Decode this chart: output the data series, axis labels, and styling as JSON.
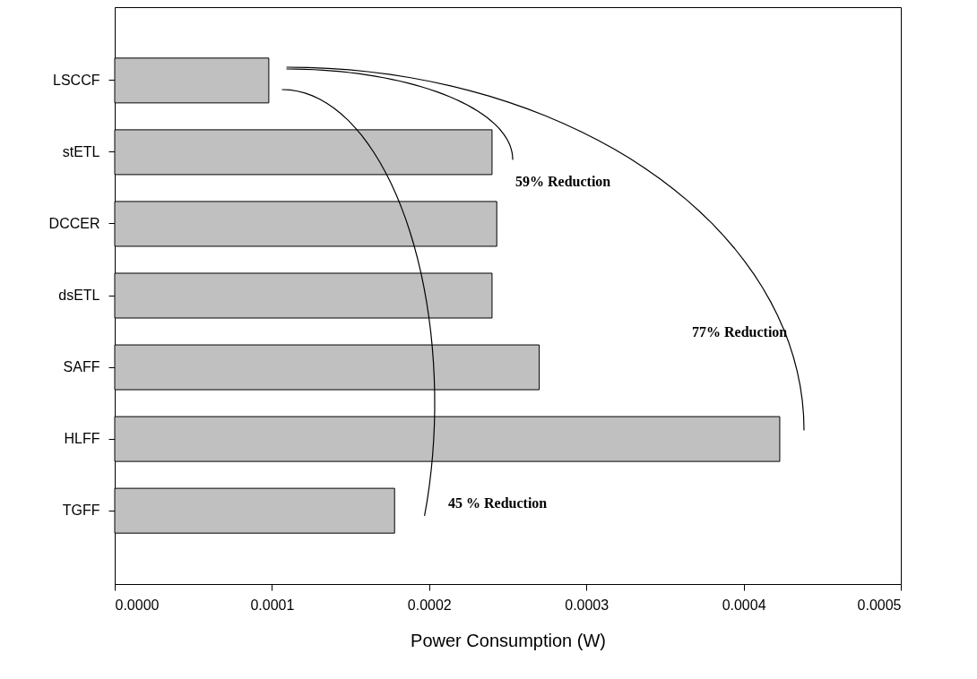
{
  "chart_data": {
    "type": "bar",
    "orientation": "horizontal",
    "xlabel": "Power Consumption (W)",
    "categories": [
      "LSCCF",
      "stETL",
      "DCCER",
      "dsETL",
      "SAFF",
      "HLFF",
      "TGFF"
    ],
    "values": [
      9.8e-05,
      0.00024,
      0.000243,
      0.00024,
      0.00027,
      0.000423,
      0.000178
    ],
    "color": "#c0c0c0",
    "xlim": [
      0,
      0.0005
    ],
    "xticks": [
      {
        "value": 0,
        "label": "0.0000"
      },
      {
        "value": 0.0001,
        "label": "0.0001"
      },
      {
        "value": 0.0002,
        "label": "0.0002"
      },
      {
        "value": 0.0003,
        "label": "0.0003"
      },
      {
        "value": 0.0004,
        "label": "0.0004"
      },
      {
        "value": 0.0005,
        "label": "0.0005"
      }
    ],
    "grid": false,
    "annotations": [
      "59% Reduction",
      "77% Reduction",
      "45 % Reduction"
    ]
  }
}
